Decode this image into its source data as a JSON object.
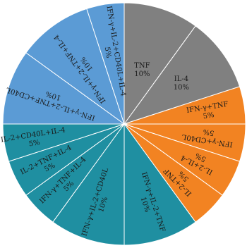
{
  "chart_data": {
    "type": "pie",
    "start": "12 o'clock",
    "direction": "clockwise",
    "slices": [
      {
        "label": "TNF",
        "value": 10,
        "text": "10%",
        "color": "#808080"
      },
      {
        "label": "IL-4",
        "value": 10,
        "text": "10%",
        "color": "#808080"
      },
      {
        "label": "IFN-γ+TNF",
        "value": 5,
        "text": "5%",
        "color": "#f28322"
      },
      {
        "label": "IFN-γ+CD40L",
        "value": 5,
        "text": "5%",
        "color": "#f28322"
      },
      {
        "label": "IL-2+IL-4",
        "value": 5,
        "text": "5%",
        "color": "#f28322"
      },
      {
        "label": "IL-2+TNF",
        "value": 5,
        "text": "5%",
        "color": "#f28322"
      },
      {
        "label": "IFN-γ+IL-2+TNF",
        "value": 10,
        "text": "10%",
        "color": "#1f8fa1"
      },
      {
        "label": "IFN-γ+IL-2+CD40L",
        "value": 10,
        "text": "10%",
        "color": "#1f8fa1"
      },
      {
        "label": "IFN-γ+TNF+IL-4",
        "value": 5,
        "text": "5%",
        "color": "#1f8fa1"
      },
      {
        "label": "IL-2+TNF+IL-4",
        "value": 5,
        "text": "5%",
        "color": "#1f8fa1"
      },
      {
        "label": "IL-2+CD40L+IL-4",
        "value": 5,
        "text": "5%",
        "color": "#1f8fa1"
      },
      {
        "label": "IFN-γ+IL-2+TNF+CD40L",
        "value": 10,
        "text": "10%",
        "color": "#5b9bd5"
      },
      {
        "label": "IFN-γ+IL-2+TNF+IL-4",
        "value": 10,
        "text": "10%",
        "color": "#5b9bd5"
      },
      {
        "label": "IFN-γ+IL-2+CD40L+IL-4",
        "value": 5,
        "text": "5%",
        "color": "#5b9bd5"
      }
    ],
    "slice_border_color": "#ffffff"
  }
}
